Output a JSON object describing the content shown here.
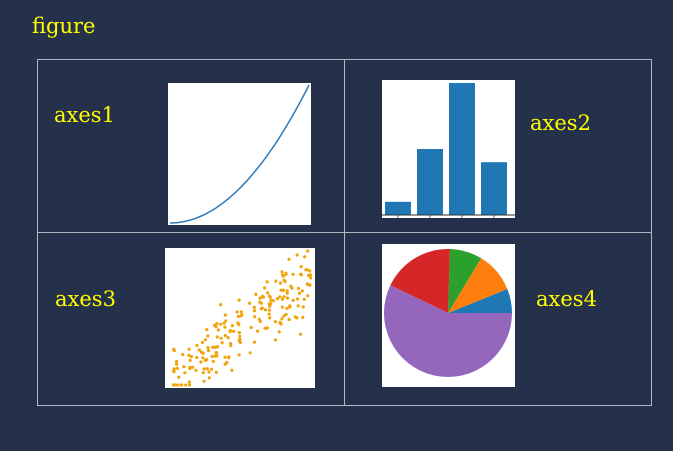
{
  "figure": {
    "label": "figure"
  },
  "axes": [
    {
      "label": "axes1"
    },
    {
      "label": "axes2"
    },
    {
      "label": "axes3"
    },
    {
      "label": "axes4"
    }
  ],
  "colors": {
    "background": "#25304a",
    "label": "#ffff00",
    "grid": "#b3b8c2",
    "line": "#2f7ab8",
    "bar": "#1f77b4",
    "scatter": "#f0a30a",
    "pie": [
      "#1f77b4",
      "#ff7f0e",
      "#2ca02c",
      "#d62728",
      "#9467bd"
    ]
  },
  "chart_data": [
    {
      "type": "line",
      "x": [
        0,
        1,
        2,
        3,
        4,
        5,
        6,
        7,
        8,
        9,
        10
      ],
      "y": [
        0,
        1,
        4,
        9,
        16,
        25,
        36,
        49,
        64,
        81,
        100
      ]
    },
    {
      "type": "bar",
      "values": [
        1,
        5,
        10,
        4
      ],
      "ylim": [
        0,
        10
      ]
    },
    {
      "type": "scatter",
      "n_points": 200
    },
    {
      "type": "pie",
      "values": [
        3,
        5,
        4,
        9,
        28
      ]
    }
  ]
}
